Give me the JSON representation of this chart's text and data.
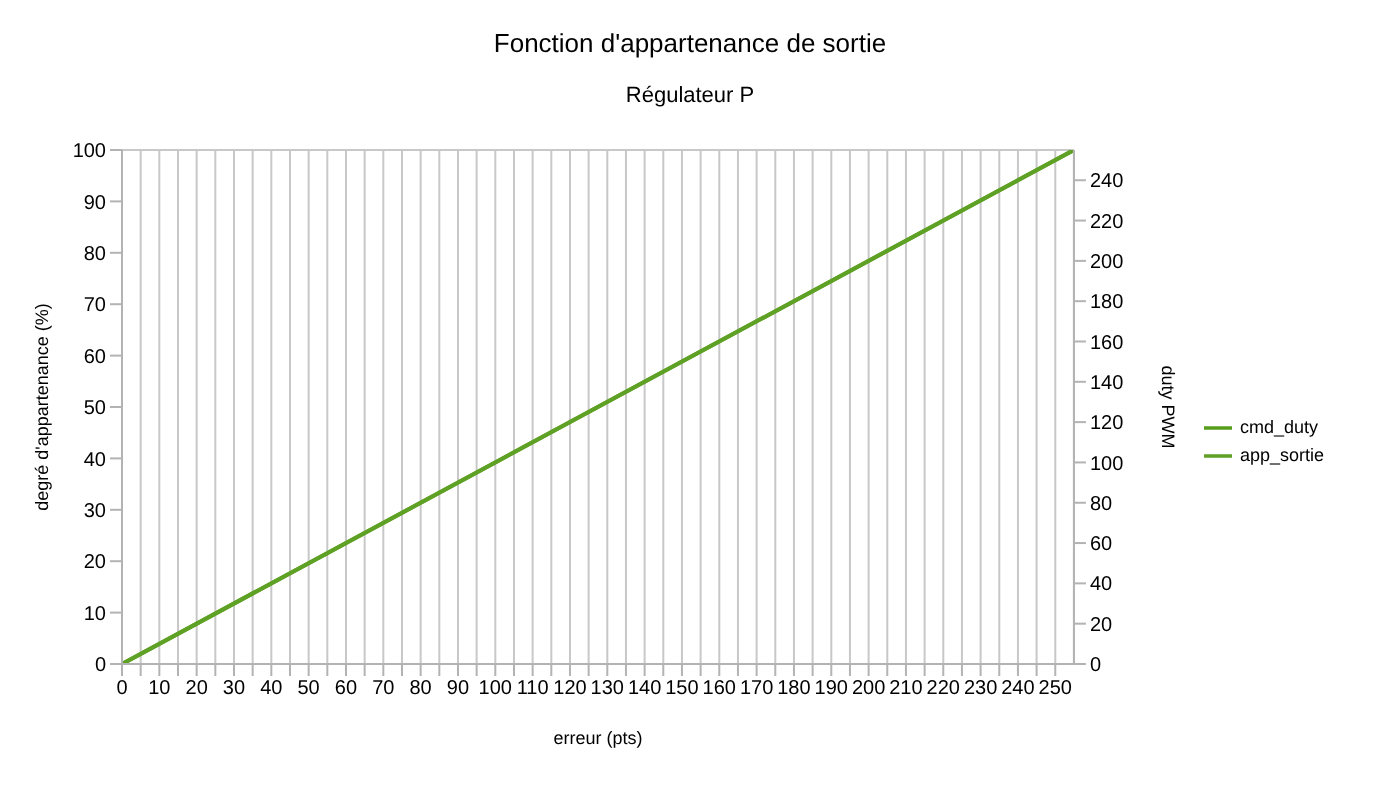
{
  "chart_data": {
    "type": "line",
    "title": "Fonction d'appartenance de sortie",
    "subtitle": "Régulateur P",
    "xlabel": "erreur (pts)",
    "ylabel": "degré d'appartenance (%)",
    "y2label": "duty PWM",
    "x": [
      0,
      255
    ],
    "series": [
      {
        "name": "cmd_duty",
        "color": "#579d1c",
        "values": [
          0,
          255
        ],
        "axis": "y2"
      },
      {
        "name": "app_sortie",
        "color": "#5ea125",
        "values": [
          0,
          100
        ]
      }
    ],
    "xlim": [
      0,
      255
    ],
    "xticks": [
      0,
      {
        "value": 5,
        "label": null
      },
      10,
      {
        "value": 15,
        "label": null
      },
      20,
      {
        "value": 25,
        "label": null
      },
      30,
      {
        "value": 35,
        "label": null
      },
      40,
      {
        "value": 45,
        "label": null
      },
      50,
      {
        "value": 55,
        "label": null
      },
      60,
      {
        "value": 65,
        "label": null
      },
      70,
      {
        "value": 75,
        "label": null
      },
      80,
      {
        "value": 85,
        "label": null
      },
      90,
      {
        "value": 95,
        "label": null
      },
      100,
      {
        "value": 105,
        "label": null
      },
      110,
      {
        "value": 115,
        "label": null
      },
      120,
      {
        "value": 125,
        "label": null
      },
      130,
      {
        "value": 135,
        "label": null
      },
      140,
      {
        "value": 145,
        "label": null
      },
      150,
      {
        "value": 155,
        "label": null
      },
      160,
      {
        "value": 165,
        "label": null
      },
      170,
      {
        "value": 175,
        "label": null
      },
      180,
      {
        "value": 185,
        "label": null
      },
      190,
      {
        "value": 195,
        "label": null
      },
      200,
      {
        "value": 205,
        "label": null
      },
      210,
      {
        "value": 215,
        "label": null
      },
      220,
      {
        "value": 225,
        "label": null
      },
      230,
      {
        "value": 235,
        "label": null
      },
      240,
      {
        "value": 245,
        "label": null
      },
      250
    ],
    "ylim": [
      0,
      100
    ],
    "yticks": [
      0,
      10,
      20,
      30,
      40,
      50,
      60,
      70,
      80,
      90,
      100
    ],
    "y2lim": [
      0,
      255
    ],
    "y2ticks": [
      0,
      20,
      40,
      60,
      80,
      100,
      120,
      140,
      160,
      180,
      200,
      220,
      240
    ],
    "grid": true,
    "legend": "right",
    "marker": "none",
    "line_style": "solid"
  }
}
